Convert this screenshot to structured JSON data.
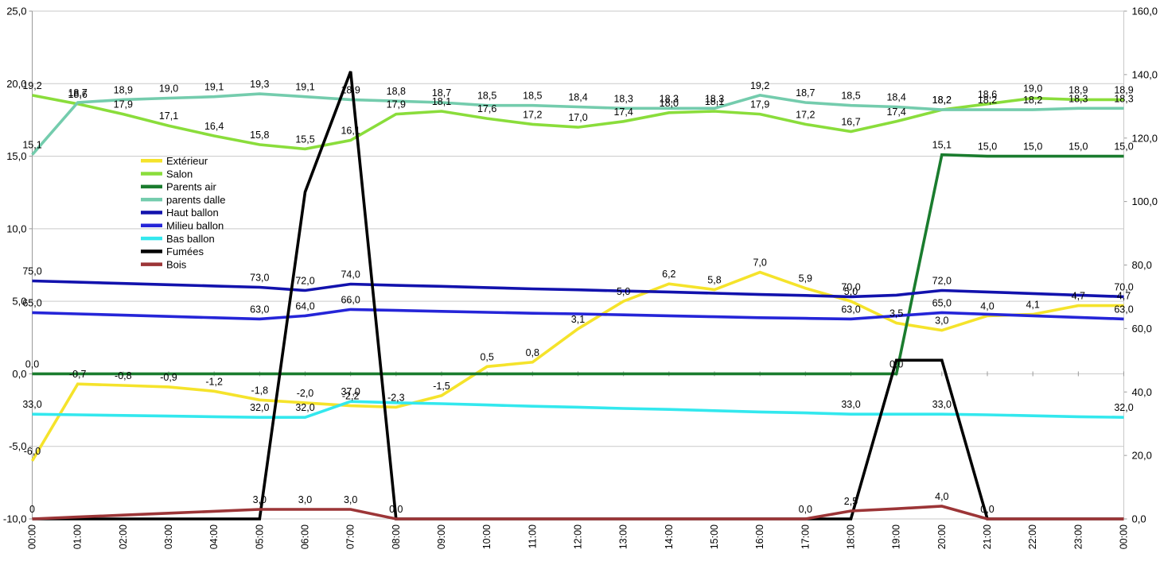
{
  "chart_data": {
    "type": "line",
    "title": "",
    "x_labels": [
      "00:00",
      "01:00",
      "02:00",
      "03:00",
      "04:00",
      "05:00",
      "06:00",
      "07:00",
      "08:00",
      "09:00",
      "10:00",
      "11:00",
      "12:00",
      "13:00",
      "14:00",
      "15:00",
      "16:00",
      "17:00",
      "18:00",
      "19:00",
      "20:00",
      "21:00",
      "22:00",
      "23:00",
      "00:00"
    ],
    "axes": {
      "left": {
        "min": -10,
        "max": 25,
        "step": 5,
        "ticks": [
          "25,0",
          "20,0",
          "15,0",
          "10,0",
          "5,0",
          "0,0",
          "-5,0",
          "-10,0"
        ]
      },
      "right": {
        "min": 0,
        "max": 160,
        "step": 20,
        "ticks": [
          "160,0",
          "140,0",
          "120,0",
          "100,0",
          "80,0",
          "60,0",
          "40,0",
          "20,0",
          "0,0"
        ]
      }
    },
    "grid": "horizontal",
    "legend_position": "inside-top-left",
    "colors": {
      "grid": "#c9c9c9",
      "axis": "#9a9a9a",
      "label_text": "#000000"
    },
    "series": [
      {
        "name": "Extérieur",
        "color": "#f5e32b",
        "axis": "left",
        "values": [
          -6.0,
          -0.7,
          -0.8,
          -0.9,
          -1.2,
          -1.8,
          -2.0,
          -2.2,
          -2.3,
          -1.5,
          0.5,
          0.8,
          3.1,
          5.0,
          6.2,
          5.8,
          7.0,
          5.9,
          5.0,
          3.5,
          3.0,
          4.0,
          4.1,
          4.7,
          4.7
        ],
        "labels": [
          "-6,0",
          "-0,7",
          "-0,8",
          "-0,9",
          "-1,2",
          "-1,8",
          "-2,0",
          "-2,2",
          "-2,3",
          "-1,5",
          "0,5",
          "0,8",
          "3,1",
          "5,0",
          "6,2",
          "5,8",
          "7,0",
          "5,9",
          "5,0",
          "3,5",
          "3,0",
          "4,0",
          "4,1",
          "4,7",
          "4,7"
        ]
      },
      {
        "name": "Salon",
        "color": "#8add3b",
        "axis": "left",
        "values": [
          19.2,
          18.6,
          17.9,
          17.1,
          16.4,
          15.8,
          15.5,
          16.1,
          17.9,
          18.1,
          17.6,
          17.2,
          17.0,
          17.4,
          18.0,
          18.1,
          17.9,
          17.2,
          16.7,
          17.4,
          18.2,
          18.6,
          19.0,
          18.9,
          18.9
        ],
        "labels": [
          "19,2",
          "18,6",
          "17,9",
          "17,1",
          "16,4",
          "15,8",
          "15,5",
          "16,1",
          "17,9",
          "18,1",
          "17,6",
          "17,2",
          "17,0",
          "17,4",
          "18,0",
          "18,1",
          "17,9",
          "17,2",
          "16,7",
          "17,4",
          "18,2",
          "18,6",
          "19,0",
          "18,9",
          "18,9"
        ]
      },
      {
        "name": "Parents air",
        "color": "#1a7c2e",
        "axis": "left",
        "values": [
          0,
          0,
          0,
          0,
          0,
          0,
          0,
          0,
          0,
          0,
          0,
          0,
          0,
          0,
          0,
          0,
          0,
          0,
          0,
          0,
          15.1,
          15.0,
          15.0,
          15.0,
          15.0
        ],
        "labels": [
          "0,0",
          null,
          null,
          null,
          null,
          null,
          null,
          null,
          null,
          null,
          null,
          null,
          null,
          null,
          null,
          null,
          null,
          null,
          null,
          "0,0",
          "15,1",
          "15,0",
          "15,0",
          "15,0",
          "15,0"
        ]
      },
      {
        "name": "parents dalle",
        "color": "#74ccad",
        "axis": "left",
        "values": [
          15.1,
          18.7,
          18.9,
          19.0,
          19.1,
          19.3,
          19.1,
          18.9,
          18.8,
          18.7,
          18.5,
          18.5,
          18.4,
          18.3,
          18.3,
          18.3,
          19.2,
          18.7,
          18.5,
          18.4,
          18.2,
          18.2,
          18.2,
          18.3,
          18.3
        ],
        "labels": [
          "15,1",
          "18,7",
          "18,9",
          "19,0",
          "19,1",
          "19,3",
          "19,1",
          "18,9",
          "18,8",
          "18,7",
          "18,5",
          "18,5",
          "18,4",
          "18,3",
          "18,3",
          "18,3",
          "19,2",
          "18,7",
          "18,5",
          "18,4",
          "18,2",
          "18,2",
          "18,2",
          "18,3",
          "18,3"
        ]
      },
      {
        "name": "Haut ballon",
        "color": "#1212ad",
        "axis": "right",
        "values": [
          75,
          74.6,
          74.2,
          73.8,
          73.4,
          73,
          72,
          74,
          73.6,
          73.3,
          72.9,
          72.5,
          72.2,
          71.8,
          71.5,
          71.1,
          70.7,
          70.4,
          70,
          70.5,
          72,
          71.5,
          71,
          70.5,
          70
        ],
        "labels": [
          "75,0",
          null,
          null,
          null,
          null,
          "73,0",
          "72,0",
          "74,0",
          null,
          null,
          null,
          null,
          null,
          null,
          null,
          null,
          null,
          null,
          "70,0",
          null,
          "72,0",
          null,
          null,
          null,
          "70,0"
        ]
      },
      {
        "name": "Milieu ballon",
        "color": "#2525d8",
        "axis": "right",
        "values": [
          65,
          64.6,
          64.2,
          63.8,
          63.4,
          63,
          64,
          66,
          65.7,
          65.4,
          65.1,
          64.8,
          64.6,
          64.3,
          64,
          63.7,
          63.4,
          63.2,
          63,
          64,
          65,
          64.5,
          64,
          63.5,
          63
        ],
        "labels": [
          "65,0",
          null,
          null,
          null,
          null,
          "63,0",
          "64,0",
          "66,0",
          null,
          null,
          null,
          null,
          null,
          null,
          null,
          null,
          null,
          null,
          "63,0",
          null,
          "65,0",
          null,
          null,
          null,
          "63,0"
        ]
      },
      {
        "name": "Bas ballon",
        "color": "#33e8ee",
        "axis": "right",
        "values": [
          33,
          32.8,
          32.6,
          32.4,
          32.2,
          32,
          32,
          37,
          36.6,
          36.3,
          35.9,
          35.5,
          35.2,
          34.8,
          34.5,
          34.1,
          33.7,
          33.4,
          33,
          33,
          33,
          32.8,
          32.5,
          32.2,
          32
        ],
        "labels": [
          "33,0",
          null,
          null,
          null,
          null,
          "32,0",
          "32,0",
          "37,0",
          null,
          null,
          null,
          null,
          null,
          null,
          null,
          null,
          null,
          null,
          "33,0",
          null,
          "33,0",
          null,
          null,
          null,
          "32,0"
        ]
      },
      {
        "name": "Fumées",
        "color": "#000000",
        "axis": "right",
        "values": [
          0,
          0,
          0,
          0,
          0,
          0,
          103,
          141,
          0,
          0,
          0,
          0,
          0,
          0,
          0,
          0,
          0,
          0,
          0,
          50,
          50,
          0,
          0,
          0,
          0
        ],
        "labels": [
          "0",
          null,
          null,
          null,
          null,
          null,
          null,
          null,
          null,
          null,
          null,
          null,
          null,
          null,
          null,
          null,
          null,
          null,
          null,
          null,
          null,
          null,
          null,
          null,
          null
        ]
      },
      {
        "name": "Bois",
        "color": "#9c3537",
        "axis": "right",
        "values": [
          0,
          0.6,
          1.2,
          1.8,
          2.4,
          3,
          3,
          3,
          0,
          0,
          0,
          0,
          0,
          0,
          0,
          0,
          0,
          0,
          2.5,
          3.2,
          4,
          0,
          0,
          0,
          0
        ],
        "labels": [
          null,
          null,
          null,
          null,
          null,
          "3,0",
          "3,0",
          "3,0",
          "0,0",
          null,
          null,
          null,
          null,
          null,
          null,
          null,
          null,
          "0,0",
          "2,5",
          null,
          "4,0",
          "0,0",
          null,
          null,
          null
        ]
      }
    ]
  }
}
